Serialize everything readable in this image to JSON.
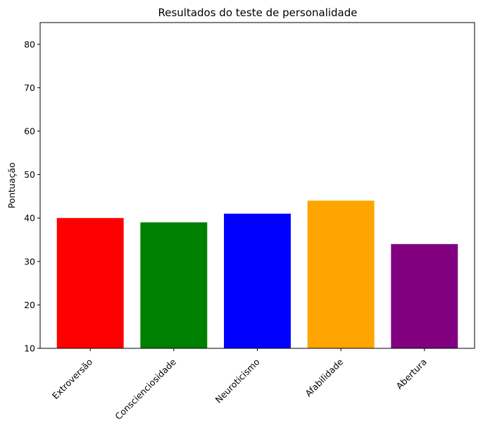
{
  "chart_data": {
    "type": "bar",
    "title": "Resultados do teste de personalidade",
    "xlabel": "",
    "ylabel": "Pontuação",
    "categories": [
      "Extroversão",
      "Conscienciosidade",
      "Neuroticismo",
      "Afabilidade",
      "Abertura"
    ],
    "values": [
      40,
      39,
      41,
      44,
      34
    ],
    "colors": [
      "#ff0000",
      "#008000",
      "#0000ff",
      "#ffa500",
      "#800080"
    ],
    "ylim": [
      10,
      85
    ],
    "yticks": [
      10,
      20,
      30,
      40,
      50,
      60,
      70,
      80
    ],
    "grid": false,
    "legend": "none"
  }
}
